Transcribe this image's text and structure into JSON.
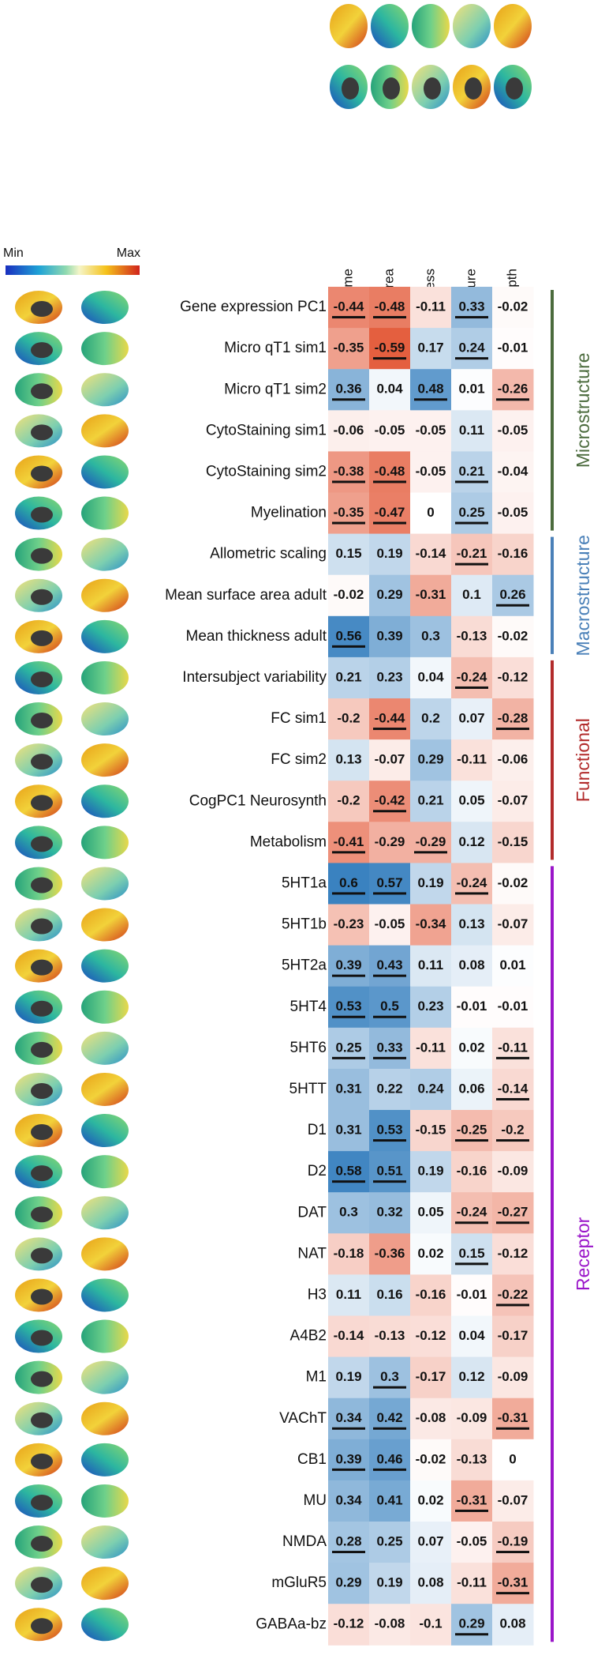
{
  "chart_data": {
    "type": "heatmap",
    "colorbar": {
      "min_label": "Min",
      "max_label": "Max"
    },
    "columns": [
      "g ~ Volume",
      "g ~ Surface area",
      "g ~ Thickness",
      "g ~ Curvature",
      "g ~ Sulcal depth"
    ],
    "groups": [
      {
        "name": "Microstructure",
        "color": "#4b6b3d",
        "rows": [
          {
            "label": "Gene expression PC1",
            "values": [
              -0.44,
              -0.48,
              -0.11,
              0.33,
              -0.02
            ],
            "significant": [
              true,
              true,
              false,
              true,
              false
            ]
          },
          {
            "label": "Micro qT1 sim1",
            "values": [
              -0.35,
              -0.59,
              0.17,
              0.24,
              -0.01
            ],
            "significant": [
              false,
              true,
              false,
              true,
              false
            ]
          },
          {
            "label": "Micro qT1 sim2",
            "values": [
              0.36,
              0.04,
              0.48,
              0.01,
              -0.26
            ],
            "significant": [
              true,
              false,
              true,
              false,
              true
            ]
          },
          {
            "label": "CytoStaining sim1",
            "values": [
              -0.06,
              -0.05,
              -0.05,
              0.11,
              -0.05
            ],
            "significant": [
              false,
              false,
              false,
              false,
              false
            ]
          },
          {
            "label": "CytoStaining sim2",
            "values": [
              -0.38,
              -0.48,
              -0.05,
              0.21,
              -0.04
            ],
            "significant": [
              true,
              true,
              false,
              true,
              false
            ]
          },
          {
            "label": "Myelination",
            "values": [
              -0.35,
              -0.47,
              0,
              0.25,
              -0.05
            ],
            "significant": [
              true,
              true,
              false,
              true,
              false
            ]
          }
        ]
      },
      {
        "name": "Macrostructure",
        "color": "#4a80b8",
        "rows": [
          {
            "label": "Allometric scaling",
            "values": [
              0.15,
              0.19,
              -0.14,
              -0.21,
              -0.16
            ],
            "significant": [
              false,
              false,
              false,
              true,
              false
            ]
          },
          {
            "label": "Mean surface area adult",
            "values": [
              -0.02,
              0.29,
              -0.31,
              0.1,
              0.26
            ],
            "significant": [
              false,
              false,
              false,
              false,
              true
            ]
          },
          {
            "label": "Mean thickness adult",
            "values": [
              0.56,
              0.39,
              0.3,
              -0.13,
              -0.02
            ],
            "significant": [
              true,
              false,
              false,
              false,
              false
            ]
          }
        ]
      },
      {
        "name": "Functional",
        "color": "#b22b2b",
        "rows": [
          {
            "label": "Intersubject variability",
            "values": [
              0.21,
              0.23,
              0.04,
              -0.24,
              -0.12
            ],
            "significant": [
              false,
              false,
              false,
              true,
              false
            ]
          },
          {
            "label": "FC sim1",
            "values": [
              -0.2,
              -0.44,
              0.2,
              0.07,
              -0.28
            ],
            "significant": [
              false,
              true,
              false,
              false,
              true
            ]
          },
          {
            "label": "FC sim2",
            "values": [
              0.13,
              -0.07,
              0.29,
              -0.11,
              -0.06
            ],
            "significant": [
              false,
              false,
              false,
              false,
              false
            ]
          },
          {
            "label": "CogPC1 Neurosynth",
            "values": [
              -0.2,
              -0.42,
              0.21,
              0.05,
              -0.07
            ],
            "significant": [
              false,
              true,
              false,
              false,
              false
            ]
          },
          {
            "label": "Metabolism",
            "values": [
              -0.41,
              -0.29,
              -0.29,
              0.12,
              -0.15
            ],
            "significant": [
              true,
              false,
              true,
              false,
              false
            ]
          }
        ]
      },
      {
        "name": "Receptor",
        "color": "#9a15c9",
        "rows": [
          {
            "label": "5HT1a",
            "values": [
              0.6,
              0.57,
              0.19,
              -0.24,
              -0.02
            ],
            "significant": [
              true,
              true,
              false,
              true,
              false
            ]
          },
          {
            "label": "5HT1b",
            "values": [
              -0.23,
              -0.05,
              -0.34,
              0.13,
              -0.07
            ],
            "significant": [
              false,
              false,
              false,
              false,
              false
            ]
          },
          {
            "label": "5HT2a",
            "values": [
              0.39,
              0.43,
              0.11,
              0.08,
              0.01
            ],
            "significant": [
              true,
              true,
              false,
              false,
              false
            ]
          },
          {
            "label": "5HT4",
            "values": [
              0.53,
              0.5,
              0.23,
              -0.01,
              -0.01
            ],
            "significant": [
              true,
              true,
              false,
              false,
              false
            ]
          },
          {
            "label": "5HT6",
            "values": [
              0.25,
              0.33,
              -0.11,
              0.02,
              -0.11
            ],
            "significant": [
              true,
              true,
              false,
              false,
              true
            ]
          },
          {
            "label": "5HTT",
            "values": [
              0.31,
              0.22,
              0.24,
              0.06,
              -0.14
            ],
            "significant": [
              false,
              false,
              false,
              false,
              true
            ]
          },
          {
            "label": "D1",
            "values": [
              0.31,
              0.53,
              -0.15,
              -0.25,
              -0.2
            ],
            "significant": [
              false,
              true,
              false,
              true,
              true
            ]
          },
          {
            "label": "D2",
            "values": [
              0.58,
              0.51,
              0.19,
              -0.16,
              -0.09
            ],
            "significant": [
              true,
              true,
              false,
              false,
              false
            ]
          },
          {
            "label": "DAT",
            "values": [
              0.3,
              0.32,
              0.05,
              -0.24,
              -0.27
            ],
            "significant": [
              false,
              false,
              false,
              true,
              true
            ]
          },
          {
            "label": "NAT",
            "values": [
              -0.18,
              -0.36,
              0.02,
              0.15,
              -0.12
            ],
            "significant": [
              false,
              false,
              false,
              true,
              false
            ]
          },
          {
            "label": "H3",
            "values": [
              0.11,
              0.16,
              -0.16,
              -0.01,
              -0.22
            ],
            "significant": [
              false,
              false,
              false,
              false,
              true
            ]
          },
          {
            "label": "A4B2",
            "values": [
              -0.14,
              -0.13,
              -0.12,
              0.04,
              -0.17
            ],
            "significant": [
              false,
              false,
              false,
              false,
              false
            ]
          },
          {
            "label": "M1",
            "values": [
              0.19,
              0.3,
              -0.17,
              0.12,
              -0.09
            ],
            "significant": [
              false,
              true,
              false,
              false,
              false
            ]
          },
          {
            "label": "VAChT",
            "values": [
              0.34,
              0.42,
              -0.08,
              -0.09,
              -0.31
            ],
            "significant": [
              true,
              true,
              false,
              false,
              true
            ]
          },
          {
            "label": "CB1",
            "values": [
              0.39,
              0.46,
              -0.02,
              -0.13,
              0
            ],
            "significant": [
              true,
              true,
              false,
              false,
              false
            ]
          },
          {
            "label": "MU",
            "values": [
              0.34,
              0.41,
              0.02,
              -0.31,
              -0.07
            ],
            "significant": [
              false,
              false,
              false,
              true,
              false
            ]
          },
          {
            "label": "NMDA",
            "values": [
              0.28,
              0.25,
              0.07,
              -0.05,
              -0.19
            ],
            "significant": [
              true,
              false,
              false,
              false,
              true
            ]
          },
          {
            "label": "mGluR5",
            "values": [
              0.29,
              0.19,
              0.08,
              -0.11,
              -0.31
            ],
            "significant": [
              false,
              false,
              false,
              false,
              true
            ]
          },
          {
            "label": "GABAa-bz",
            "values": [
              -0.12,
              -0.08,
              -0.1,
              0.29,
              0.08
            ],
            "significant": [
              false,
              false,
              false,
              true,
              false
            ]
          }
        ]
      }
    ]
  }
}
